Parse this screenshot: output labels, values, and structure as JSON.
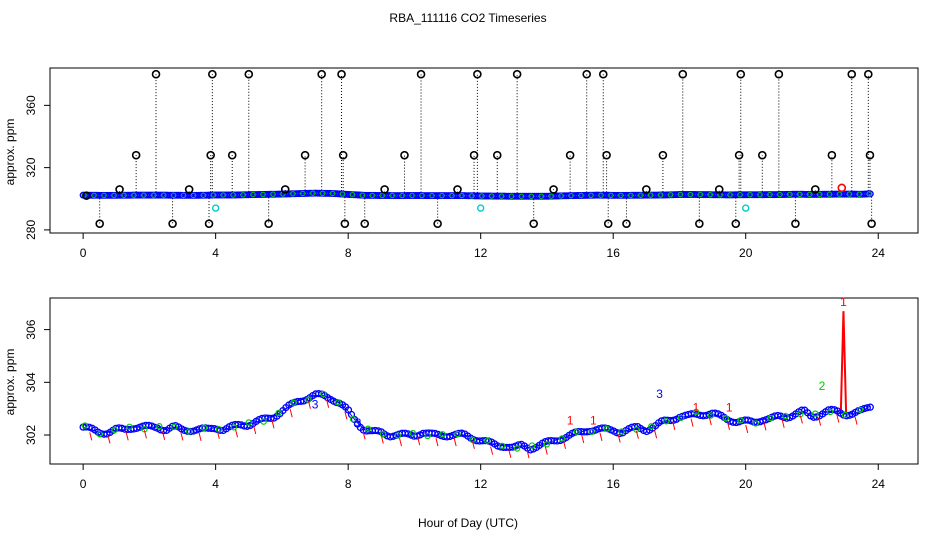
{
  "page": {
    "title": "RBA_111116  CO2 Timeseries",
    "xlabel_shared": "Hour of Day (UTC)"
  },
  "colors": {
    "black": "#000000",
    "blue": "#0000ff",
    "green": "#00cc00",
    "red": "#ff0000",
    "cyan": "#00cccc"
  },
  "chart_data": [
    {
      "type": "scatter",
      "title": "",
      "xlabel": "",
      "ylabel": "approx. ppm",
      "xlim": [
        -1,
        25.2
      ],
      "ylim": [
        278,
        384
      ],
      "xticks": [
        "0",
        "4",
        "8",
        "12",
        "16",
        "20",
        "24"
      ],
      "yticks": [
        "280",
        "320",
        "360"
      ],
      "grid": false,
      "baseline": {
        "x": [
          0,
          0.5,
          1,
          1.5,
          2,
          2.5,
          3,
          3.5,
          4,
          4.5,
          5,
          5.5,
          6,
          6.5,
          7,
          7.5,
          8,
          8.5,
          9,
          9.5,
          10,
          10.5,
          11,
          11.5,
          12,
          12.5,
          13,
          13.5,
          14,
          14.5,
          15,
          15.5,
          16,
          16.5,
          17,
          17.5,
          18,
          18.5,
          19,
          19.5,
          20,
          20.5,
          21,
          21.5,
          22,
          22.5,
          23,
          23.5,
          23.8
        ],
        "y": [
          302.3,
          302.2,
          302.2,
          302.3,
          302.3,
          302.3,
          302.2,
          302.2,
          302.4,
          302.4,
          302.6,
          302.8,
          303.0,
          303.3,
          303.6,
          303.4,
          302.8,
          302.2,
          302.1,
          302.0,
          302.1,
          302.0,
          302.0,
          302.0,
          301.8,
          301.7,
          301.6,
          301.6,
          301.6,
          301.9,
          302.1,
          302.3,
          302.2,
          302.2,
          302.3,
          302.4,
          302.7,
          302.7,
          302.6,
          302.5,
          302.6,
          302.6,
          302.7,
          302.9,
          302.8,
          302.9,
          303.0,
          302.9,
          303.2
        ]
      },
      "spikes": {
        "x": [
          0.1,
          0.5,
          1.1,
          1.6,
          2.2,
          2.7,
          3.2,
          3.8,
          3.85,
          3.9,
          4.5,
          5.0,
          5.6,
          6.1,
          6.7,
          7.2,
          7.8,
          7.85,
          7.9,
          8.5,
          9.1,
          9.7,
          10.2,
          10.7,
          11.3,
          11.8,
          11.9,
          12.5,
          13.1,
          13.6,
          14.2,
          14.7,
          15.2,
          15.7,
          15.8,
          15.85,
          16.4,
          17.0,
          17.5,
          18.1,
          18.6,
          19.2,
          19.7,
          19.8,
          19.85,
          20.5,
          21.0,
          21.5,
          22.1,
          22.6,
          23.2,
          23.7,
          23.75,
          23.8
        ],
        "y": [
          302,
          284,
          306,
          328,
          380,
          284,
          306,
          284,
          328,
          380,
          328,
          380,
          284,
          306,
          328,
          380,
          380,
          328,
          284,
          284,
          306,
          328,
          380,
          284,
          306,
          328,
          380,
          328,
          380,
          284,
          306,
          328,
          380,
          380,
          328,
          284,
          284,
          306,
          328,
          380,
          284,
          306,
          284,
          328,
          380,
          328,
          380,
          284,
          306,
          328,
          380,
          380,
          328,
          284
        ]
      },
      "cyan_points": {
        "x": [
          4.0,
          12.0,
          20.0
        ],
        "y": [
          294,
          294,
          294
        ]
      },
      "red_points": {
        "x": [
          22.9
        ],
        "y": [
          307
        ]
      }
    },
    {
      "type": "line",
      "title": "",
      "xlabel": "Hour of Day (UTC)",
      "ylabel": "approx. ppm",
      "xlim": [
        -1,
        25.2
      ],
      "ylim": [
        300.9,
        307.2
      ],
      "xticks": [
        "0",
        "4",
        "8",
        "12",
        "16",
        "20",
        "24"
      ],
      "yticks": [
        "302",
        "304",
        "306"
      ],
      "grid": false,
      "series": [
        {
          "x": [
            0,
            0.25,
            0.5,
            0.75,
            1,
            1.25,
            1.5,
            1.75,
            2,
            2.25,
            2.5,
            2.75,
            3,
            3.25,
            3.5,
            3.75,
            4,
            4.25,
            4.5,
            4.75,
            5,
            5.25,
            5.5,
            5.75,
            6,
            6.25,
            6.5,
            6.75,
            7,
            7.25,
            7.5,
            7.75,
            8,
            8.25,
            8.5,
            8.75,
            9,
            9.25,
            9.5,
            9.75,
            10,
            10.25,
            10.5,
            10.75,
            11,
            11.25,
            11.5,
            11.75,
            12,
            12.25,
            12.5,
            12.75,
            13,
            13.25,
            13.5,
            13.75,
            14,
            14.25,
            14.5,
            14.75,
            15,
            15.25,
            15.5,
            15.75,
            16,
            16.25,
            16.5,
            16.75,
            17,
            17.25,
            17.5,
            17.75,
            18,
            18.25,
            18.5,
            18.75,
            19,
            19.25,
            19.5,
            19.75,
            20,
            20.25,
            20.5,
            20.75,
            21,
            21.25,
            21.5,
            21.75,
            22,
            22.25,
            22.5,
            22.75,
            23,
            23.25,
            23.5,
            23.75
          ],
          "values": [
            302.3,
            302.2,
            302.1,
            302.1,
            302.2,
            302.2,
            302.3,
            302.3,
            302.3,
            302.3,
            302.2,
            302.3,
            302.2,
            302.2,
            302.2,
            302.2,
            302.3,
            302.2,
            302.3,
            302.4,
            302.4,
            302.5,
            302.6,
            302.7,
            302.9,
            303.1,
            303.3,
            303.4,
            303.5,
            303.5,
            303.4,
            303.2,
            302.9,
            302.5,
            302.2,
            302.1,
            302.1,
            302.0,
            302.0,
            302.0,
            302.0,
            302.1,
            302.0,
            302.0,
            302.0,
            302.0,
            302.0,
            301.9,
            301.8,
            301.7,
            301.6,
            301.6,
            301.5,
            301.6,
            301.5,
            301.6,
            301.7,
            301.8,
            301.9,
            302.0,
            302.1,
            302.2,
            302.2,
            302.2,
            302.2,
            302.1,
            302.2,
            302.3,
            302.2,
            302.3,
            302.5,
            302.6,
            302.7,
            302.7,
            302.8,
            302.8,
            302.8,
            302.7,
            302.6,
            302.5,
            302.5,
            302.5,
            302.6,
            302.6,
            302.7,
            302.7,
            302.8,
            302.9,
            302.7,
            302.8,
            302.9,
            302.9,
            302.8,
            302.8,
            302.9,
            303.1
          ]
        }
      ],
      "labels": [
        {
          "text": "3",
          "x": 17.4,
          "y": 303.4,
          "color": "#0000ff"
        },
        {
          "text": "2",
          "x": 22.3,
          "y": 303.7,
          "color": "#00cc00"
        },
        {
          "text": "1",
          "x": 22.95,
          "y": 306.9,
          "color": "#ff0000"
        },
        {
          "text": "1",
          "x": 14.7,
          "y": 302.4,
          "color": "#ff0000"
        },
        {
          "text": "1",
          "x": 15.4,
          "y": 302.4,
          "color": "#ff0000"
        },
        {
          "text": "1",
          "x": 18.5,
          "y": 302.9,
          "color": "#ff0000"
        },
        {
          "text": "1",
          "x": 19.5,
          "y": 302.9,
          "color": "#ff0000"
        },
        {
          "text": "3",
          "x": 7.0,
          "y": 303.0,
          "color": "#0000ff"
        },
        {
          "text": "3",
          "x": 8.3,
          "y": 302.3,
          "color": "#0000ff"
        }
      ],
      "peak_spike": {
        "x": 22.95,
        "y": 306.7
      }
    }
  ]
}
